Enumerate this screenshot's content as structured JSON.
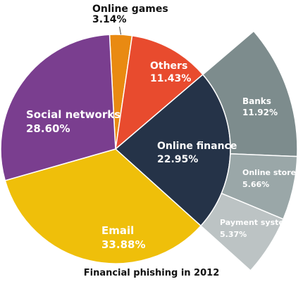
{
  "chart_data": {
    "type": "pie",
    "caption": "Financial phishing in 2012",
    "slices": [
      {
        "name": "Online games",
        "value": 3.14,
        "label": "3.14%",
        "color": "#e98a12"
      },
      {
        "name": "Others",
        "value": 11.43,
        "label": "11.43%",
        "color": "#e84b2e"
      },
      {
        "name": "Online finance",
        "value": 22.95,
        "label": "22.95%",
        "color": "#253348"
      },
      {
        "name": "Email",
        "value": 33.88,
        "label": "33.88%",
        "color": "#efbf0a"
      },
      {
        "name": "Social networks",
        "value": 28.6,
        "label": "28.60%",
        "color": "#7a3e8f"
      }
    ],
    "breakdown": {
      "parent": "Online finance",
      "slices": [
        {
          "name": "Banks",
          "value": 11.92,
          "label": "11.92%",
          "color": "#7d8c8d"
        },
        {
          "name": "Online stores",
          "value": 5.66,
          "label": "5.66%",
          "color": "#9aa7a8"
        },
        {
          "name": "Payment systems",
          "value": 5.37,
          "label": "5.37%",
          "color": "#bcc3c4"
        }
      ]
    }
  }
}
